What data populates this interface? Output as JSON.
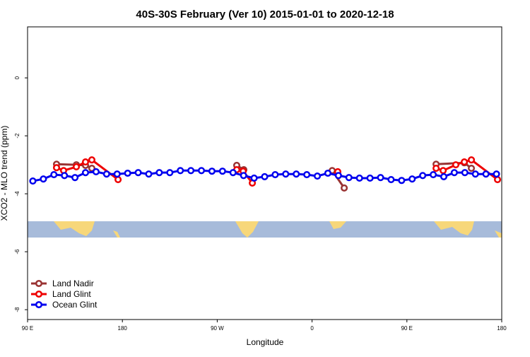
{
  "chart_data": {
    "type": "line",
    "title": "40S-30S February (Ver 10)   2015-01-01 to 2020-12-18",
    "x_label": "Longitude",
    "y_label": "XCO2 - MLO trend (ppm)",
    "xlim": [
      90,
      540
    ],
    "ylim": [
      -8.34,
      1.76
    ],
    "xticks": [
      {
        "value": 90,
        "label": "90 E"
      },
      180,
      {
        "value": 270,
        "label": "90 W"
      },
      {
        "value": 360,
        "label": "0"
      },
      {
        "value": 450,
        "label": "90 E"
      },
      {
        "value": 540,
        "label": "180"
      }
    ],
    "yticks": [
      0,
      -2,
      -4,
      -6,
      -8
    ],
    "legend": "bottom-left",
    "series": [
      {
        "name": "Land Nadir",
        "color": "#993333",
        "x": [
          117.5,
          136.3,
          145.0,
          151.0,
          220,
          288.5,
          295.2,
          340,
          379.1,
          390.5,
          430,
          477.7,
          504.5,
          511.2
        ],
        "values": [
          -2.98,
          -3.0,
          -3.02,
          -3.12,
          null,
          -3.02,
          -3.17,
          null,
          -3.2,
          -3.8,
          null,
          -2.98,
          -2.93,
          -3.12
        ]
      },
      {
        "name": "Land Glint",
        "color": "#ee0000",
        "x": [
          117.5,
          124.2,
          136.3,
          145.0,
          151.0,
          175.9,
          230,
          288.5,
          294.6,
          303.3,
          340,
          384.4,
          430,
          477.7,
          484.4,
          496.4,
          504.5,
          511.2,
          536.0
        ],
        "values": [
          -3.1,
          -3.2,
          -3.07,
          -2.9,
          -2.83,
          -3.51,
          null,
          -3.17,
          -3.22,
          -3.63,
          null,
          -3.24,
          null,
          -3.12,
          -3.2,
          -3.0,
          -2.9,
          -2.83,
          -3.51
        ]
      },
      {
        "name": "Ocean Glint",
        "color": "#0000ee",
        "x": [
          95,
          105,
          115,
          125,
          135,
          145,
          155,
          165,
          175,
          185,
          195,
          205,
          215,
          225,
          235,
          245,
          255,
          265,
          275,
          285,
          295,
          305,
          315,
          325,
          335,
          345,
          355,
          365,
          375,
          385,
          395,
          405,
          415,
          425,
          435,
          445,
          455,
          465,
          475,
          485,
          495,
          505,
          515,
          525,
          535
        ],
        "values": [
          -3.56,
          -3.49,
          -3.34,
          -3.37,
          -3.44,
          -3.27,
          -3.24,
          -3.32,
          -3.32,
          -3.29,
          -3.27,
          -3.32,
          -3.27,
          -3.27,
          -3.2,
          -3.2,
          -3.2,
          -3.22,
          -3.22,
          -3.27,
          -3.37,
          -3.46,
          -3.41,
          -3.34,
          -3.32,
          -3.32,
          -3.34,
          -3.39,
          -3.29,
          -3.37,
          -3.44,
          -3.46,
          -3.46,
          -3.44,
          -3.51,
          -3.54,
          -3.49,
          -3.37,
          -3.34,
          -3.41,
          -3.27,
          -3.27,
          -3.32,
          -3.32,
          -3.32
        ]
      }
    ]
  }
}
